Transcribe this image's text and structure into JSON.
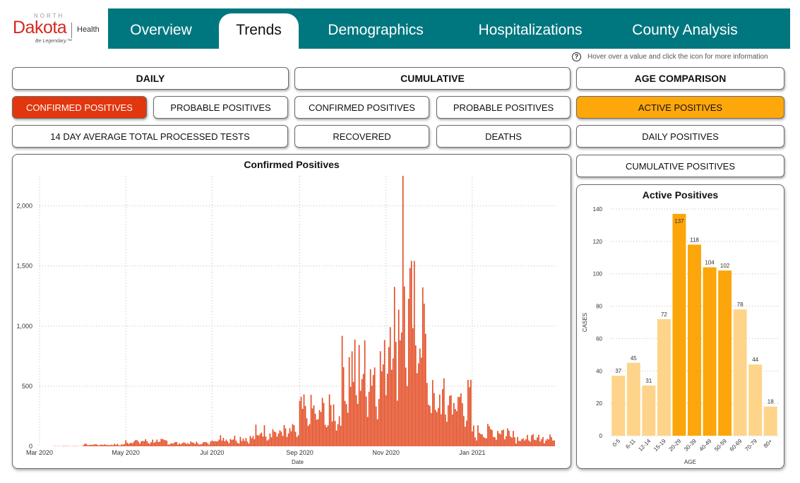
{
  "logo": {
    "north": "NORTH",
    "dakota": "Dakota",
    "health": "Health",
    "tagline": "Be Legendary.™",
    "brand_color": "#d6281e"
  },
  "nav": {
    "color": "#00777f",
    "tabs": [
      {
        "label": "Overview"
      },
      {
        "label": "Trends",
        "active": true
      },
      {
        "label": "Demographics"
      },
      {
        "label": "Hospitalizations"
      },
      {
        "label": "County Analysis"
      }
    ]
  },
  "help": {
    "icon": "question-circle-icon",
    "text": "Hover over a value and click the icon for more information"
  },
  "buttons": {
    "daily": "DAILY",
    "cumulative": "CUMULATIVE",
    "age_comparison": "AGE COMPARISON",
    "daily_confirmed": "CONFIRMED POSITIVES",
    "daily_probable": "PROBABLE POSITIVES",
    "cum_confirmed": "CONFIRMED POSITIVES",
    "cum_probable": "PROBABLE POSITIVES",
    "active_positives": "ACTIVE POSITIVES",
    "avg_tests": "14 DAY AVERAGE TOTAL PROCESSED TESTS",
    "recovered": "RECOVERED",
    "deaths": "DEATHS",
    "daily_positives": "DAILY POSITIVES",
    "cumulative_positives": "CUMULATIVE POSITIVES"
  },
  "colors": {
    "selected_red": "#e2360f",
    "selected_orange": "#fda70b",
    "bar_red": "#e2461c",
    "age_highlight": "#fca60b",
    "age_light": "#fed48a"
  },
  "chart_data": [
    {
      "type": "bar",
      "title": "Confirmed Positives",
      "xlabel": "Date",
      "ylabel": "",
      "ylim": [
        0,
        2250
      ],
      "yticks": [
        0,
        500,
        1000,
        1500,
        2000
      ],
      "ytick_labels": [
        "0",
        "500",
        "1,000",
        "1,500",
        "2,000"
      ],
      "x_range": [
        "2020-03-01",
        "2021-03-01"
      ],
      "x_ticks": [
        {
          "date": "2020-03-01",
          "label": "Mar 2020"
        },
        {
          "date": "2020-05-01",
          "label": "May 2020"
        },
        {
          "date": "2020-07-01",
          "label": "Jul 2020"
        },
        {
          "date": "2020-09-01",
          "label": "Sep 2020"
        },
        {
          "date": "2020-11-01",
          "label": "Nov 2020"
        },
        {
          "date": "2021-01-01",
          "label": "Jan 2021"
        }
      ],
      "start_date": "2020-03-11",
      "monthly_shape": [
        {
          "month": "2020-03",
          "typ": 2
        },
        {
          "month": "2020-04",
          "typ": 15
        },
        {
          "month": "2020-05",
          "typ": 45
        },
        {
          "month": "2020-06",
          "typ": 30
        },
        {
          "month": "2020-07",
          "typ": 70
        },
        {
          "month": "2020-08",
          "typ": 130
        },
        {
          "month": "2020-09",
          "typ": 300
        },
        {
          "month": "2020-10",
          "typ": 650
        },
        {
          "month": "2020-11",
          "typ": 1100
        },
        {
          "month": "2020-12",
          "typ": 400
        },
        {
          "month": "2021-01",
          "typ": 130
        },
        {
          "month": "2021-02",
          "typ": 70
        }
      ],
      "peak": {
        "date": "2020-11-13",
        "value": 2250
      },
      "end_date": "2021-02-28"
    },
    {
      "type": "bar",
      "title": "Active Positives",
      "xlabel": "AGE",
      "ylabel": "CASES",
      "ylim": [
        0,
        140
      ],
      "yticks": [
        0,
        20,
        40,
        60,
        80,
        100,
        120,
        140
      ],
      "categories": [
        "0-5",
        "6-11",
        "12-14",
        "15-19",
        "20-29",
        "30-39",
        "40-49",
        "50-59",
        "60-69",
        "70-79",
        "80+"
      ],
      "values": [
        37,
        45,
        31,
        72,
        137,
        118,
        104,
        102,
        78,
        44,
        18
      ],
      "highlight": [
        false,
        false,
        false,
        false,
        true,
        true,
        true,
        true,
        false,
        false,
        false
      ]
    }
  ]
}
